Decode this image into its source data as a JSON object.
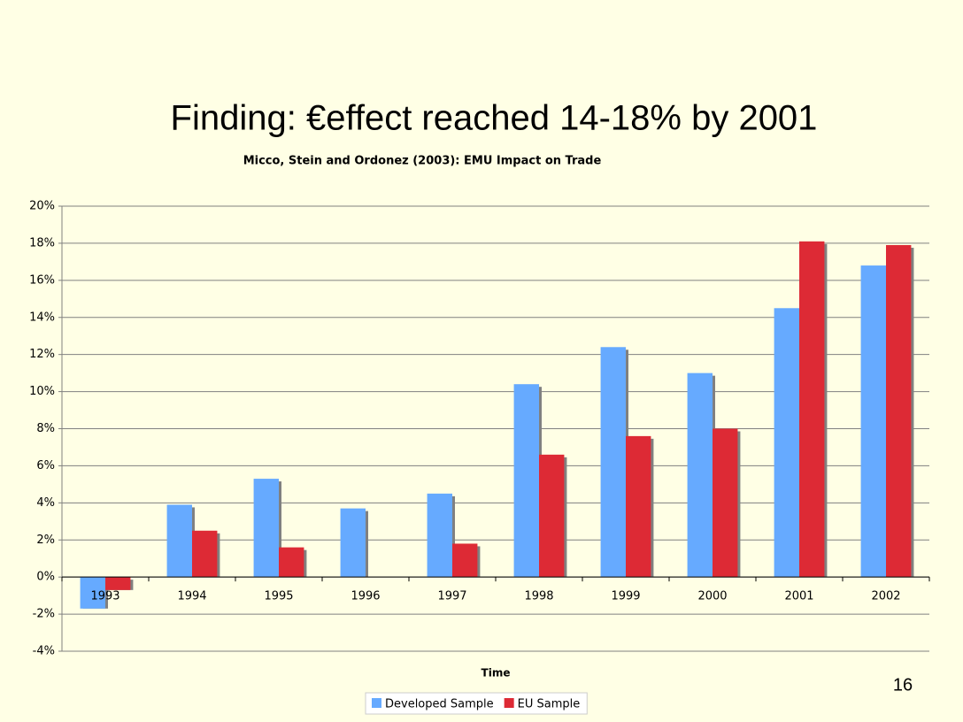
{
  "slide": {
    "title": "Finding: €effect reached 14-18% by 2001",
    "page_number": "16"
  },
  "chart_data": {
    "type": "bar",
    "title": "Micco, Stein and Ordonez (2003): EMU Impact on Trade",
    "x_label": "Time",
    "categories": [
      "1993",
      "1994",
      "1995",
      "1996",
      "1997",
      "1998",
      "1999",
      "2000",
      "2001",
      "2002"
    ],
    "series": [
      {
        "name": "Developed Sample",
        "color": "#66aaff",
        "values": [
          -1.7,
          3.9,
          5.3,
          3.7,
          4.5,
          10.4,
          12.4,
          11.0,
          14.5,
          16.8
        ]
      },
      {
        "name": "EU Sample",
        "color": "#dd2a35",
        "values": [
          -0.7,
          2.5,
          1.6,
          null,
          1.8,
          6.6,
          7.6,
          8.0,
          18.1,
          17.9
        ]
      }
    ],
    "ylim": [
      -4,
      20
    ],
    "yticks": [
      {
        "value": -4,
        "label": "-4%"
      },
      {
        "value": -2,
        "label": "-2%"
      },
      {
        "value": 0,
        "label": "0%"
      },
      {
        "value": 2,
        "label": "2%"
      },
      {
        "value": 4,
        "label": "4%"
      },
      {
        "value": 6,
        "label": "6%"
      },
      {
        "value": 8,
        "label": "8%"
      },
      {
        "value": 10,
        "label": "10%"
      },
      {
        "value": 12,
        "label": "12%"
      },
      {
        "value": 14,
        "label": "14%"
      },
      {
        "value": 16,
        "label": "16%"
      },
      {
        "value": 18,
        "label": "18%"
      },
      {
        "value": 20,
        "label": "20%"
      }
    ],
    "grid": true,
    "legend": "bottom"
  }
}
